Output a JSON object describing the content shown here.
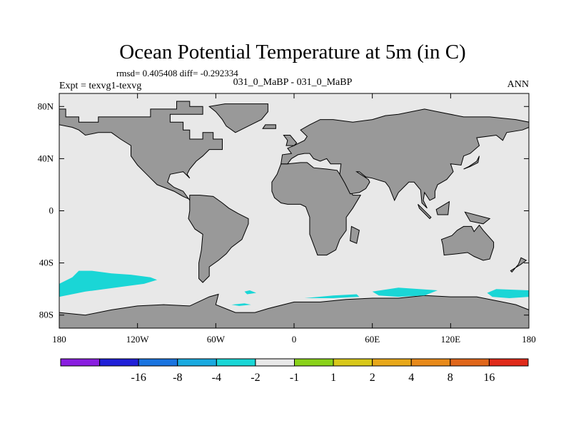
{
  "chart_data": {
    "type": "heatmap",
    "title": "Ocean Potential Temperature at 5m (in C)",
    "stats_text": "rmsd= 0.405408 diff= -0.292334",
    "left_label": "Expt = texvg1-texvg",
    "center_label": "031_0_MaBP - 031_0_MaBP",
    "right_label": "ANN",
    "xlim": [
      -180,
      180
    ],
    "ylim": [
      -90,
      90
    ],
    "x_ticks": [
      {
        "value": -180,
        "label": "180"
      },
      {
        "value": -120,
        "label": "120W"
      },
      {
        "value": -60,
        "label": "60W"
      },
      {
        "value": 0,
        "label": "0"
      },
      {
        "value": 60,
        "label": "60E"
      },
      {
        "value": 120,
        "label": "120E"
      },
      {
        "value": 180,
        "label": "180"
      }
    ],
    "y_ticks": [
      {
        "value": 80,
        "label": "80N"
      },
      {
        "value": 40,
        "label": "40N"
      },
      {
        "value": 0,
        "label": "0"
      },
      {
        "value": -40,
        "label": "40S"
      },
      {
        "value": -80,
        "label": "80S"
      }
    ],
    "colorbar": {
      "bins": [
        {
          "color": "#8a1ee0"
        },
        {
          "color": "#2020d8"
        },
        {
          "color": "#1a74e0"
        },
        {
          "color": "#1aaae0"
        },
        {
          "color": "#1ad6d6"
        },
        {
          "color": "#e8e8e8"
        },
        {
          "color": "#8ad21a"
        },
        {
          "color": "#d8c81a"
        },
        {
          "color": "#e8a81a"
        },
        {
          "color": "#e88a1a"
        },
        {
          "color": "#e0661a"
        },
        {
          "color": "#e02a1a"
        }
      ],
      "labels": [
        "-16",
        "-8",
        "-4",
        "-2",
        "-1",
        "1",
        "2",
        "4",
        "8",
        "16"
      ]
    },
    "colors": {
      "ocean": "#e8e8e8",
      "land": "#999999",
      "anomaly": "#1ad6d6"
    },
    "land_polygons": [
      [
        [
          -180,
          78
        ],
        [
          -175,
          78
        ],
        [
          -175,
          72
        ],
        [
          -165,
          72
        ],
        [
          -165,
          68
        ],
        [
          -150,
          68
        ],
        [
          -150,
          72
        ],
        [
          -110,
          72
        ],
        [
          -110,
          78
        ],
        [
          -90,
          78
        ],
        [
          -90,
          84
        ],
        [
          -80,
          84
        ],
        [
          -80,
          80
        ],
        [
          -70,
          80
        ],
        [
          -70,
          74
        ],
        [
          -95,
          74
        ],
        [
          -95,
          68
        ],
        [
          -85,
          68
        ],
        [
          -85,
          62
        ],
        [
          -80,
          62
        ],
        [
          -80,
          55
        ],
        [
          -70,
          55
        ],
        [
          -70,
          60
        ],
        [
          -62,
          60
        ],
        [
          -62,
          55
        ],
        [
          -55,
          55
        ],
        [
          -55,
          47
        ],
        [
          -65,
          47
        ],
        [
          -70,
          42
        ],
        [
          -75,
          38
        ],
        [
          -80,
          32
        ],
        [
          -82,
          28
        ],
        [
          -80,
          25
        ],
        [
          -85,
          30
        ],
        [
          -95,
          28
        ],
        [
          -97,
          22
        ],
        [
          -92,
          18
        ],
        [
          -85,
          15
        ],
        [
          -80,
          8
        ],
        [
          -78,
          8
        ],
        [
          -85,
          11
        ],
        [
          -92,
          15
        ],
        [
          -105,
          20
        ],
        [
          -110,
          25
        ],
        [
          -115,
          30
        ],
        [
          -120,
          35
        ],
        [
          -125,
          42
        ],
        [
          -125,
          50
        ],
        [
          -133,
          55
        ],
        [
          -140,
          60
        ],
        [
          -150,
          60
        ],
        [
          -160,
          58
        ],
        [
          -165,
          62
        ],
        [
          -170,
          64
        ],
        [
          -180,
          66
        ]
      ],
      [
        [
          -53,
          82
        ],
        [
          -20,
          82
        ],
        [
          -20,
          76
        ],
        [
          -25,
          70
        ],
        [
          -35,
          65
        ],
        [
          -45,
          60
        ],
        [
          -52,
          65
        ],
        [
          -55,
          70
        ],
        [
          -60,
          76
        ],
        [
          -65,
          80
        ]
      ],
      [
        [
          -80,
          12
        ],
        [
          -72,
          12
        ],
        [
          -62,
          11
        ],
        [
          -55,
          6
        ],
        [
          -50,
          2
        ],
        [
          -43,
          -2
        ],
        [
          -35,
          -6
        ],
        [
          -35,
          -10
        ],
        [
          -40,
          -22
        ],
        [
          -48,
          -28
        ],
        [
          -52,
          -33
        ],
        [
          -58,
          -38
        ],
        [
          -65,
          -43
        ],
        [
          -65,
          -50
        ],
        [
          -70,
          -55
        ],
        [
          -73,
          -52
        ],
        [
          -73,
          -40
        ],
        [
          -71,
          -30
        ],
        [
          -70,
          -18
        ],
        [
          -76,
          -14
        ],
        [
          -81,
          -6
        ],
        [
          -80,
          0
        ]
      ],
      [
        [
          -10,
          36
        ],
        [
          -5,
          36
        ],
        [
          5,
          37
        ],
        [
          10,
          37
        ],
        [
          15,
          33
        ],
        [
          25,
          32
        ],
        [
          33,
          31
        ],
        [
          35,
          28
        ],
        [
          40,
          20
        ],
        [
          45,
          12
        ],
        [
          51,
          12
        ],
        [
          45,
          2
        ],
        [
          40,
          -5
        ],
        [
          40,
          -15
        ],
        [
          35,
          -22
        ],
        [
          32,
          -30
        ],
        [
          25,
          -34
        ],
        [
          18,
          -34
        ],
        [
          12,
          -18
        ],
        [
          12,
          -5
        ],
        [
          9,
          3
        ],
        [
          5,
          5
        ],
        [
          -5,
          5
        ],
        [
          -10,
          6
        ],
        [
          -15,
          10
        ],
        [
          -17,
          15
        ],
        [
          -17,
          22
        ],
        [
          -13,
          28
        ]
      ],
      [
        [
          -10,
          36
        ],
        [
          -9,
          43
        ],
        [
          -2,
          44
        ],
        [
          -5,
          48
        ],
        [
          0,
          50
        ],
        [
          8,
          54
        ],
        [
          10,
          57
        ],
        [
          5,
          62
        ],
        [
          12,
          66
        ],
        [
          20,
          70
        ],
        [
          30,
          70
        ],
        [
          45,
          68
        ],
        [
          60,
          70
        ],
        [
          70,
          73
        ],
        [
          80,
          74
        ],
        [
          100,
          78
        ],
        [
          110,
          76
        ],
        [
          130,
          72
        ],
        [
          150,
          72
        ],
        [
          170,
          70
        ],
        [
          180,
          68
        ],
        [
          180,
          64
        ],
        [
          175,
          62
        ],
        [
          163,
          60
        ],
        [
          160,
          54
        ],
        [
          155,
          58
        ],
        [
          140,
          56
        ],
        [
          142,
          50
        ],
        [
          135,
          44
        ],
        [
          130,
          42
        ],
        [
          128,
          35
        ],
        [
          120,
          36
        ],
        [
          122,
          30
        ],
        [
          117,
          24
        ],
        [
          110,
          20
        ],
        [
          108,
          15
        ],
        [
          108,
          10
        ],
        [
          104,
          8
        ],
        [
          100,
          14
        ],
        [
          99,
          8
        ],
        [
          102,
          2
        ],
        [
          98,
          6
        ],
        [
          97,
          16
        ],
        [
          92,
          22
        ],
        [
          88,
          22
        ],
        [
          80,
          14
        ],
        [
          77,
          8
        ],
        [
          73,
          18
        ],
        [
          70,
          22
        ],
        [
          60,
          25
        ],
        [
          55,
          26
        ],
        [
          50,
          30
        ],
        [
          48,
          30
        ],
        [
          57,
          24
        ],
        [
          58,
          22
        ],
        [
          55,
          17
        ],
        [
          50,
          14
        ],
        [
          43,
          13
        ],
        [
          39,
          21
        ],
        [
          35,
          28
        ],
        [
          36,
          36
        ],
        [
          28,
          36
        ],
        [
          25,
          40
        ],
        [
          20,
          38
        ],
        [
          15,
          40
        ],
        [
          12,
          44
        ],
        [
          8,
          44
        ],
        [
          3,
          43
        ],
        [
          -2,
          40
        ],
        [
          -5,
          36
        ]
      ],
      [
        [
          113,
          -22
        ],
        [
          114,
          -26
        ],
        [
          115,
          -34
        ],
        [
          125,
          -33
        ],
        [
          133,
          -32
        ],
        [
          138,
          -35
        ],
        [
          145,
          -38
        ],
        [
          150,
          -37
        ],
        [
          153,
          -28
        ],
        [
          153,
          -24
        ],
        [
          145,
          -15
        ],
        [
          142,
          -11
        ],
        [
          138,
          -16
        ],
        [
          136,
          -12
        ],
        [
          130,
          -12
        ],
        [
          125,
          -15
        ],
        [
          121,
          -19
        ]
      ],
      [
        [
          -180,
          -78
        ],
        [
          -160,
          -80
        ],
        [
          -140,
          -76
        ],
        [
          -120,
          -73
        ],
        [
          -100,
          -72
        ],
        [
          -80,
          -73
        ],
        [
          -65,
          -66
        ],
        [
          -58,
          -64
        ],
        [
          -60,
          -72
        ],
        [
          -45,
          -78
        ],
        [
          -30,
          -78
        ],
        [
          -20,
          -75
        ],
        [
          0,
          -70
        ],
        [
          20,
          -70
        ],
        [
          40,
          -68
        ],
        [
          60,
          -67
        ],
        [
          80,
          -67
        ],
        [
          100,
          -65
        ],
        [
          120,
          -66
        ],
        [
          140,
          -66
        ],
        [
          160,
          -70
        ],
        [
          170,
          -72
        ],
        [
          180,
          -76
        ],
        [
          180,
          -90
        ],
        [
          -180,
          -90
        ]
      ],
      [
        [
          -8,
          58
        ],
        [
          -3,
          58
        ],
        [
          2,
          52
        ],
        [
          0,
          50
        ],
        [
          -6,
          50
        ],
        [
          -5,
          54
        ]
      ],
      [
        [
          -24,
          63
        ],
        [
          -14,
          63
        ],
        [
          -14,
          66
        ],
        [
          -22,
          66
        ]
      ],
      [
        [
          44,
          -12
        ],
        [
          50,
          -15
        ],
        [
          48,
          -25
        ],
        [
          43,
          -23
        ]
      ],
      [
        [
          95,
          5
        ],
        [
          105,
          -5
        ],
        [
          104,
          -6
        ],
        [
          96,
          2
        ]
      ],
      [
        [
          109,
          1
        ],
        [
          119,
          7
        ],
        [
          118,
          -3
        ],
        [
          110,
          -3
        ]
      ],
      [
        [
          131,
          -1
        ],
        [
          150,
          -6
        ],
        [
          145,
          -10
        ],
        [
          135,
          -8
        ]
      ],
      [
        [
          130,
          32
        ],
        [
          135,
          34
        ],
        [
          141,
          37
        ],
        [
          142,
          42
        ],
        [
          140,
          38
        ],
        [
          134,
          34
        ]
      ],
      [
        [
          166,
          -46
        ],
        [
          174,
          -41
        ],
        [
          178,
          -38
        ],
        [
          174,
          -36
        ],
        [
          172,
          -41
        ],
        [
          167,
          -47
        ]
      ]
    ],
    "anomaly_polygons": [
      [
        [
          -180,
          -56
        ],
        [
          -180,
          -66
        ],
        [
          -160,
          -62
        ],
        [
          -130,
          -58
        ],
        [
          -115,
          -56
        ],
        [
          -105,
          -53
        ],
        [
          -110,
          -51
        ],
        [
          -125,
          -49
        ],
        [
          -140,
          -48
        ],
        [
          -155,
          -46
        ],
        [
          -165,
          -46
        ],
        [
          -170,
          -51
        ]
      ],
      [
        [
          -38,
          -62
        ],
        [
          -34,
          -61
        ],
        [
          -29,
          -63
        ],
        [
          -36,
          -64
        ]
      ],
      [
        [
          -48,
          -72
        ],
        [
          -38,
          -71
        ],
        [
          -33,
          -72
        ],
        [
          -42,
          -73
        ]
      ],
      [
        [
          8,
          -67
        ],
        [
          30,
          -65
        ],
        [
          48,
          -64
        ],
        [
          50,
          -66
        ],
        [
          30,
          -67
        ]
      ],
      [
        [
          60,
          -62
        ],
        [
          80,
          -59
        ],
        [
          110,
          -61
        ],
        [
          100,
          -65
        ],
        [
          80,
          -66
        ],
        [
          65,
          -65
        ]
      ],
      [
        [
          148,
          -63
        ],
        [
          155,
          -60
        ],
        [
          180,
          -61
        ],
        [
          180,
          -66
        ],
        [
          165,
          -67
        ],
        [
          152,
          -66
        ]
      ]
    ]
  }
}
